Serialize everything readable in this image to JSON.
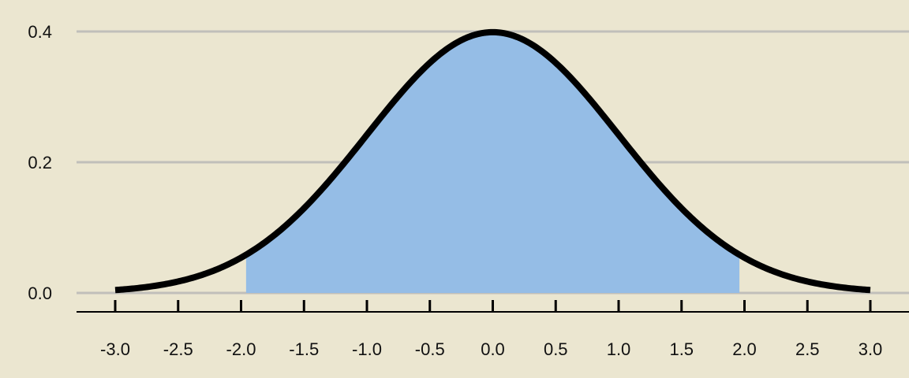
{
  "colors": {
    "background": "#ebe6d0",
    "grid": "#c0bfba",
    "curve": "#000000",
    "fill": "#95bde6",
    "axis": "#000000"
  },
  "chart_data": {
    "type": "area",
    "title": "",
    "xlabel": "",
    "ylabel": "",
    "function": "standard normal probability density",
    "xlim": [
      -3.0,
      3.0
    ],
    "ylim": [
      0.0,
      0.4
    ],
    "x_ticks": [
      "-3.0",
      "-2.5",
      "-2.0",
      "-1.5",
      "-1.0",
      "-0.5",
      "0.0",
      "0.5",
      "1.0",
      "1.5",
      "2.0",
      "2.5",
      "3.0"
    ],
    "y_ticks": [
      "0.0",
      "0.2",
      "0.4"
    ],
    "shaded_region": [
      -1.96,
      1.96
    ],
    "series": [
      {
        "x": [
          -3.0,
          -2.5,
          -2.0,
          -1.5,
          -1.0,
          -0.5,
          0.0,
          0.5,
          1.0,
          1.5,
          2.0,
          2.5,
          3.0
        ],
        "values": [
          0.0044,
          0.0175,
          0.054,
          0.1295,
          0.242,
          0.3521,
          0.3989,
          0.3521,
          0.242,
          0.1295,
          0.054,
          0.0175,
          0.0044
        ]
      }
    ],
    "grid": true,
    "legend": "none"
  }
}
